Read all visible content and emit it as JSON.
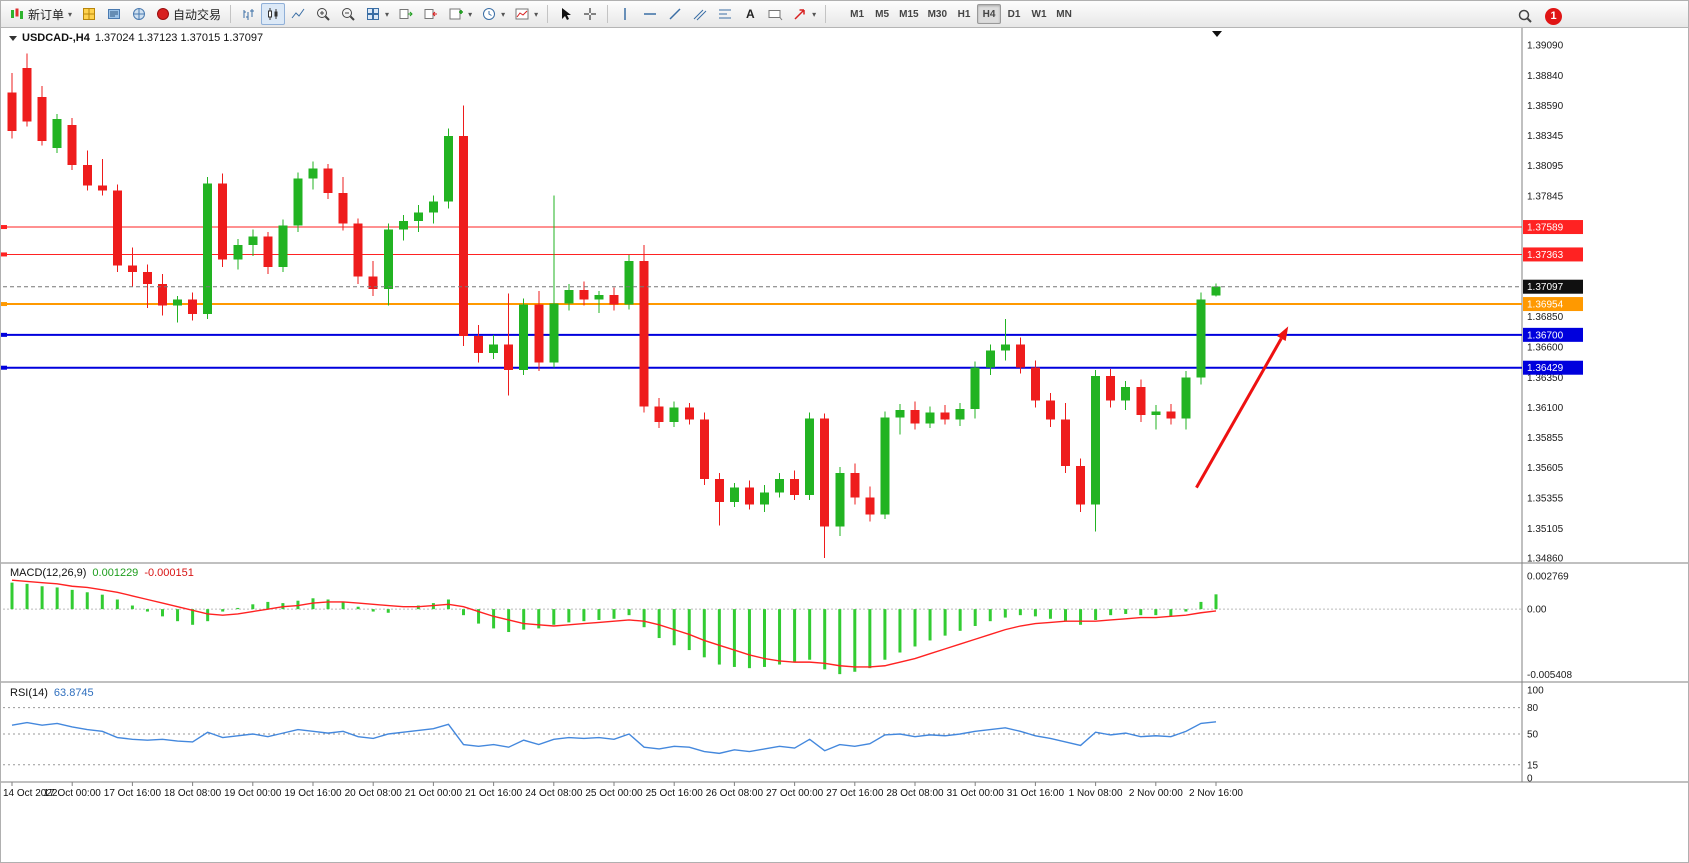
{
  "toolbar": {
    "new_order_label": "新订单",
    "auto_trading_label": "自动交易",
    "timeframes": [
      "M1",
      "M5",
      "M15",
      "M30",
      "H1",
      "H4",
      "D1",
      "W1",
      "MN"
    ],
    "active_timeframe": "H4",
    "badge_count": "1"
  },
  "chart": {
    "title": "USDCAD-,H4",
    "ohlc": "1.37024 1.37123 1.37015 1.37097"
  },
  "chart_data": {
    "type": "candlestick",
    "symbol": "USDCAD-",
    "timeframe": "H4",
    "price_range": [
      1.3486,
      1.3909
    ],
    "colors": {
      "up": "#22b322",
      "down": "#ee1c1c",
      "macd_hist": "#33cc33",
      "macd_signal": "#ff2222",
      "rsi_line": "#4488dd",
      "axis_text": "#1a1a1a"
    },
    "candles": [
      [
        1.387,
        1.3886,
        1.3832,
        1.3838
      ],
      [
        1.389,
        1.3902,
        1.3842,
        1.3846
      ],
      [
        1.3866,
        1.3875,
        1.3826,
        1.383
      ],
      [
        1.3824,
        1.3852,
        1.382,
        1.3848
      ],
      [
        1.3843,
        1.3849,
        1.3806,
        1.381
      ],
      [
        1.381,
        1.3822,
        1.3789,
        1.3793
      ],
      [
        1.3793,
        1.3815,
        1.3785,
        1.3789
      ],
      [
        1.3789,
        1.3794,
        1.3722,
        1.3727
      ],
      [
        1.3727,
        1.3742,
        1.371,
        1.3722
      ],
      [
        1.3722,
        1.3728,
        1.3692,
        1.3712
      ],
      [
        1.3712,
        1.372,
        1.3686,
        1.3694
      ],
      [
        1.3694,
        1.3702,
        1.368,
        1.3699
      ],
      [
        1.3699,
        1.3705,
        1.3682,
        1.3687
      ],
      [
        1.3687,
        1.38,
        1.3683,
        1.3795
      ],
      [
        1.3795,
        1.3803,
        1.3726,
        1.3732
      ],
      [
        1.3732,
        1.3749,
        1.3724,
        1.3744
      ],
      [
        1.3744,
        1.3757,
        1.3735,
        1.3751
      ],
      [
        1.3751,
        1.3755,
        1.372,
        1.3726
      ],
      [
        1.3726,
        1.3765,
        1.3722,
        1.376
      ],
      [
        1.376,
        1.3804,
        1.3755,
        1.3799
      ],
      [
        1.3799,
        1.3813,
        1.379,
        1.3807
      ],
      [
        1.3807,
        1.3811,
        1.3782,
        1.3787
      ],
      [
        1.3787,
        1.38,
        1.3756,
        1.3762
      ],
      [
        1.3762,
        1.3766,
        1.3712,
        1.3718
      ],
      [
        1.3718,
        1.3731,
        1.3702,
        1.3708
      ],
      [
        1.3708,
        1.3762,
        1.3694,
        1.3757
      ],
      [
        1.3757,
        1.3769,
        1.3748,
        1.3764
      ],
      [
        1.3764,
        1.3777,
        1.3755,
        1.3771
      ],
      [
        1.3771,
        1.3785,
        1.3762,
        1.378
      ],
      [
        1.378,
        1.384,
        1.3774,
        1.3834
      ],
      [
        1.3834,
        1.3859,
        1.3661,
        1.3669
      ],
      [
        1.3669,
        1.3678,
        1.3647,
        1.3655
      ],
      [
        1.3655,
        1.367,
        1.365,
        1.3662
      ],
      [
        1.3662,
        1.3704,
        1.362,
        1.3641
      ],
      [
        1.3641,
        1.37,
        1.3637,
        1.3695
      ],
      [
        1.3695,
        1.3706,
        1.364,
        1.3647
      ],
      [
        1.3647,
        1.3785,
        1.3643,
        1.3696
      ],
      [
        1.3696,
        1.3712,
        1.369,
        1.3707
      ],
      [
        1.3707,
        1.3714,
        1.3694,
        1.3699
      ],
      [
        1.3699,
        1.3706,
        1.3688,
        1.3703
      ],
      [
        1.3703,
        1.3709,
        1.369,
        1.3695
      ],
      [
        1.3695,
        1.3736,
        1.3691,
        1.3731
      ],
      [
        1.3731,
        1.3744,
        1.3606,
        1.3611
      ],
      [
        1.3611,
        1.3618,
        1.3593,
        1.3598
      ],
      [
        1.3598,
        1.3615,
        1.3594,
        1.361
      ],
      [
        1.361,
        1.3614,
        1.3596,
        1.36
      ],
      [
        1.36,
        1.3606,
        1.3546,
        1.3551
      ],
      [
        1.3551,
        1.3556,
        1.3513,
        1.3532
      ],
      [
        1.3532,
        1.3548,
        1.3528,
        1.3544
      ],
      [
        1.3544,
        1.355,
        1.3526,
        1.353
      ],
      [
        1.353,
        1.3546,
        1.3524,
        1.354
      ],
      [
        1.354,
        1.3556,
        1.3536,
        1.3551
      ],
      [
        1.3551,
        1.3558,
        1.3534,
        1.3538
      ],
      [
        1.3538,
        1.3606,
        1.3534,
        1.3601
      ],
      [
        1.3601,
        1.3605,
        1.3486,
        1.3512
      ],
      [
        1.3512,
        1.3561,
        1.3504,
        1.3556
      ],
      [
        1.3556,
        1.3564,
        1.353,
        1.3536
      ],
      [
        1.3536,
        1.3545,
        1.3516,
        1.3522
      ],
      [
        1.3522,
        1.3607,
        1.3518,
        1.3602
      ],
      [
        1.3602,
        1.3613,
        1.3588,
        1.3608
      ],
      [
        1.3608,
        1.3615,
        1.3592,
        1.3597
      ],
      [
        1.3597,
        1.3611,
        1.3593,
        1.3606
      ],
      [
        1.3606,
        1.3612,
        1.3596,
        1.36
      ],
      [
        1.36,
        1.3614,
        1.3595,
        1.3609
      ],
      [
        1.3609,
        1.3648,
        1.3601,
        1.3643
      ],
      [
        1.3643,
        1.3662,
        1.3637,
        1.3657
      ],
      [
        1.3657,
        1.3683,
        1.3649,
        1.3662
      ],
      [
        1.3662,
        1.3668,
        1.3638,
        1.3643
      ],
      [
        1.3643,
        1.3649,
        1.361,
        1.3616
      ],
      [
        1.3616,
        1.3622,
        1.3594,
        1.36
      ],
      [
        1.36,
        1.3614,
        1.3556,
        1.3562
      ],
      [
        1.3562,
        1.3568,
        1.3524,
        1.353
      ],
      [
        1.353,
        1.3641,
        1.3508,
        1.3636
      ],
      [
        1.3636,
        1.3642,
        1.361,
        1.3616
      ],
      [
        1.3616,
        1.3632,
        1.3608,
        1.3627
      ],
      [
        1.3627,
        1.3633,
        1.3598,
        1.3604
      ],
      [
        1.3604,
        1.3612,
        1.3592,
        1.3607
      ],
      [
        1.3607,
        1.3613,
        1.3596,
        1.3601
      ],
      [
        1.3601,
        1.364,
        1.3592,
        1.3635
      ],
      [
        1.3635,
        1.3705,
        1.3629,
        1.3699
      ],
      [
        1.37024,
        1.37123,
        1.37015,
        1.37097
      ]
    ],
    "time_labels": [
      "14 Oct 2022",
      "17 Oct 00:00",
      "17 Oct 16:00",
      "18 Oct 08:00",
      "19 Oct 00:00",
      "19 Oct 16:00",
      "20 Oct 08:00",
      "21 Oct 00:00",
      "21 Oct 16:00",
      "24 Oct 08:00",
      "25 Oct 00:00",
      "25 Oct 16:00",
      "26 Oct 08:00",
      "27 Oct 00:00",
      "27 Oct 16:00",
      "28 Oct 08:00",
      "31 Oct 00:00",
      "31 Oct 16:00",
      "1 Nov 08:00",
      "2 Nov 00:00",
      "2 Nov 16:00"
    ],
    "label_every": 4,
    "scale_ticks": [
      "1.39090",
      "1.38840",
      "1.38590",
      "1.38345",
      "1.38095",
      "1.37845",
      "1.36850",
      "1.36600",
      "1.36350",
      "1.36100",
      "1.35855",
      "1.35605",
      "1.35355",
      "1.35105",
      "1.34860"
    ],
    "hlines": [
      {
        "price": 1.37589,
        "label": "1.37589",
        "color": "#ff2222",
        "width": 1
      },
      {
        "price": 1.37363,
        "label": "1.37363",
        "color": "#ff2222",
        "width": 1
      },
      {
        "price": 1.36954,
        "label": "1.36954",
        "color": "#ff9900",
        "width": 2
      },
      {
        "price": 1.367,
        "label": "1.36700",
        "color": "#0000dd",
        "width": 2
      },
      {
        "price": 1.36429,
        "label": "1.36429",
        "color": "#0000dd",
        "width": 2
      }
    ],
    "current_price": {
      "value": 1.37097,
      "label": "1.37097",
      "color": "#101010"
    },
    "arrow": {
      "x1_bar": 78.7,
      "price1": 1.3544,
      "x2_bar": 84.8,
      "price2": 1.3677,
      "color": "#ee1111"
    },
    "macd": {
      "label": "MACD(12,26,9)",
      "value_main": "0.001229",
      "value_signal": "-0.000151",
      "scale": [
        "0.002769",
        "0.00",
        "-0.005408"
      ],
      "range": {
        "min": -0.0058,
        "max": 0.003
      },
      "main": [
        0.0022,
        0.0021,
        0.0019,
        0.0018,
        0.0016,
        0.0014,
        0.0012,
        0.0008,
        0.0003,
        -0.0002,
        -0.0006,
        -0.001,
        -0.0013,
        -0.001,
        -0.0002,
        0.0001,
        0.0004,
        0.0006,
        0.0005,
        0.0007,
        0.0009,
        0.0008,
        0.0006,
        0.0002,
        -0.0002,
        -0.0003,
        0.0,
        0.0003,
        0.0005,
        0.0008,
        -0.0005,
        -0.0012,
        -0.0016,
        -0.0019,
        -0.0017,
        -0.0016,
        -0.0013,
        -0.0011,
        -0.001,
        -0.0009,
        -0.0008,
        -0.0005,
        -0.0015,
        -0.0024,
        -0.003,
        -0.0034,
        -0.004,
        -0.0046,
        -0.0048,
        -0.0049,
        -0.0048,
        -0.0046,
        -0.0044,
        -0.0042,
        -0.005,
        -0.0054,
        -0.0052,
        -0.0049,
        -0.0042,
        -0.0036,
        -0.0031,
        -0.0026,
        -0.0022,
        -0.0018,
        -0.0014,
        -0.001,
        -0.0007,
        -0.0005,
        -0.0006,
        -0.0008,
        -0.001,
        -0.0013,
        -0.0009,
        -0.0005,
        -0.0004,
        -0.0005,
        -0.0005,
        -0.0006,
        -0.0002,
        0.0006,
        0.001229
      ],
      "signal": [
        0.0024,
        0.0023,
        0.0022,
        0.0021,
        0.0019,
        0.0018,
        0.0016,
        0.0014,
        0.0011,
        0.0008,
        0.0005,
        0.0002,
        -0.0001,
        -0.0004,
        -0.0005,
        -0.0004,
        -0.0002,
        0.0,
        0.0002,
        0.0003,
        0.0005,
        0.0006,
        0.0006,
        0.0005,
        0.0004,
        0.0003,
        0.0002,
        0.0002,
        0.0003,
        0.0004,
        0.0002,
        -0.0002,
        -0.0006,
        -0.0009,
        -0.0012,
        -0.0013,
        -0.0014,
        -0.0013,
        -0.0012,
        -0.0011,
        -0.001,
        -0.0009,
        -0.001,
        -0.0013,
        -0.0017,
        -0.0021,
        -0.0026,
        -0.003,
        -0.0034,
        -0.0038,
        -0.0041,
        -0.0043,
        -0.0044,
        -0.0044,
        -0.0045,
        -0.0047,
        -0.0048,
        -0.0048,
        -0.0047,
        -0.0044,
        -0.0041,
        -0.0037,
        -0.0033,
        -0.0029,
        -0.0025,
        -0.0021,
        -0.0017,
        -0.0014,
        -0.0012,
        -0.0011,
        -0.001,
        -0.001,
        -0.001,
        -0.0009,
        -0.0008,
        -0.0007,
        -0.0007,
        -0.0006,
        -0.0005,
        -0.0003,
        -0.000151
      ]
    },
    "rsi": {
      "label": "RSI(14)",
      "value": "63.8745",
      "scale": [
        "100",
        "80",
        "50",
        "15",
        "0"
      ],
      "levels": [
        80,
        50,
        15
      ],
      "range": [
        0,
        100
      ],
      "series": [
        60,
        63,
        60,
        62,
        58,
        55,
        53,
        46,
        44,
        43,
        44,
        42,
        41,
        52,
        46,
        48,
        50,
        47,
        51,
        55,
        53,
        51,
        53,
        47,
        45,
        50,
        52,
        54,
        56,
        61,
        38,
        36,
        38,
        35,
        43,
        38,
        44,
        46,
        45,
        46,
        44,
        50,
        35,
        33,
        36,
        35,
        30,
        28,
        32,
        30,
        33,
        36,
        34,
        44,
        31,
        38,
        36,
        39,
        49,
        50,
        47,
        49,
        48,
        50,
        53,
        55,
        57,
        53,
        48,
        45,
        41,
        37,
        52,
        49,
        51,
        47,
        48,
        47,
        53,
        62,
        63.87
      ]
    }
  }
}
